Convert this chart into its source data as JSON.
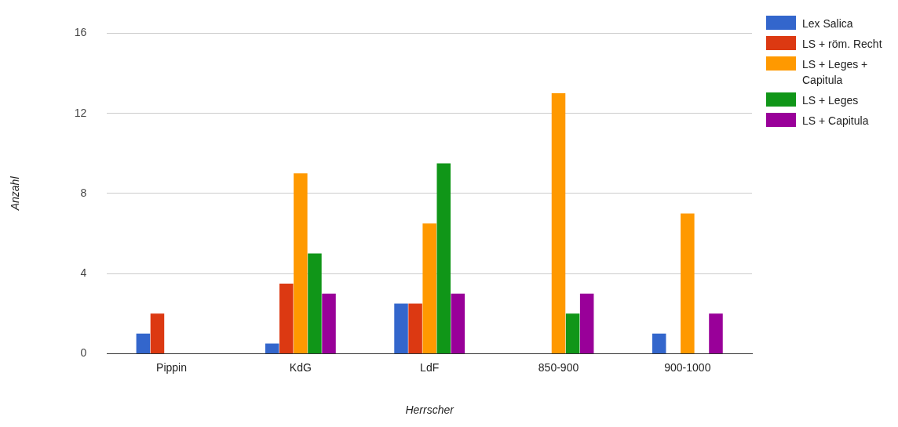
{
  "chart_data": {
    "type": "bar",
    "xlabel": "Herrscher",
    "ylabel": "Anzahl",
    "categories": [
      "Pippin",
      "KdG",
      "LdF",
      "850-900",
      "900-1000"
    ],
    "series": [
      {
        "name": "Lex Salica",
        "color": "#3366cc",
        "values": [
          1,
          0.5,
          2.5,
          0,
          1
        ]
      },
      {
        "name": "LS + röm. Recht",
        "color": "#dc3912",
        "values": [
          2,
          3.5,
          2.5,
          0,
          0
        ]
      },
      {
        "name": "LS + Leges + Capitula",
        "color": "#ff9900",
        "values": [
          0,
          9,
          6.5,
          13,
          7
        ]
      },
      {
        "name": "LS + Leges",
        "color": "#109618",
        "values": [
          0,
          5,
          9.5,
          2,
          0
        ]
      },
      {
        "name": "LS + Capitula",
        "color": "#990099",
        "values": [
          0,
          3,
          3,
          3,
          2
        ]
      }
    ],
    "ylim": [
      0,
      16
    ],
    "yticks": [
      0,
      4,
      8,
      12,
      16
    ],
    "grid": "y",
    "legend": "right"
  }
}
